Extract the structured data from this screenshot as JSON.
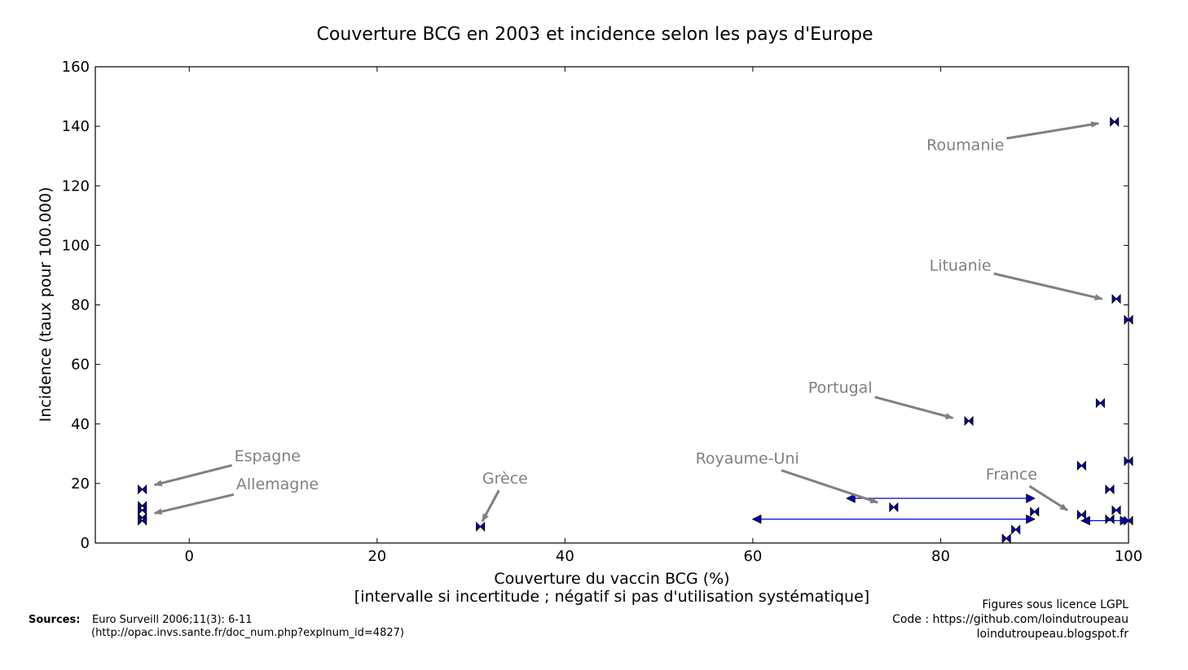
{
  "chart_data": {
    "type": "scatter",
    "title": "Couverture BCG en 2003 et incidence selon les pays d'Europe",
    "xlabel_line1": "Couverture du vaccin BCG (%)",
    "xlabel_line2": "[intervalle si incertitude ; négatif si pas d'utilisation systématique]",
    "ylabel": "Incidence (taux pour 100.000)",
    "xlim": [
      -10,
      100
    ],
    "ylim": [
      0,
      160
    ],
    "x_ticks": [
      0,
      20,
      40,
      60,
      80,
      100
    ],
    "y_ticks": [
      0,
      20,
      40,
      60,
      80,
      100,
      120,
      140,
      160
    ],
    "grid": false,
    "marker_color": "#0000cc",
    "interval_color": "#0000cc",
    "annotation_color": "#808080",
    "points": [
      {
        "x": -5,
        "y": 18
      },
      {
        "x": -5,
        "y": 12.5
      },
      {
        "x": -5,
        "y": 11
      },
      {
        "x": -5,
        "y": 8.5
      },
      {
        "x": -5,
        "y": 7.5
      },
      {
        "x": 31,
        "y": 5.5
      },
      {
        "x": 75,
        "y": 12
      },
      {
        "x": 83,
        "y": 41
      },
      {
        "x": 87,
        "y": 1.5
      },
      {
        "x": 88,
        "y": 4.5
      },
      {
        "x": 90,
        "y": 10.5
      },
      {
        "x": 95,
        "y": 26
      },
      {
        "x": 95,
        "y": 9.5
      },
      {
        "x": 97,
        "y": 47
      },
      {
        "x": 98,
        "y": 18
      },
      {
        "x": 98,
        "y": 8
      },
      {
        "x": 98.5,
        "y": 141.5
      },
      {
        "x": 98.7,
        "y": 82
      },
      {
        "x": 98.7,
        "y": 11
      },
      {
        "x": 100,
        "y": 75
      },
      {
        "x": 100,
        "y": 27.5
      },
      {
        "x": 100,
        "y": 7.5
      }
    ],
    "intervals": [
      {
        "x_min": 70,
        "x_max": 90,
        "y": 15
      },
      {
        "x_min": 60,
        "x_max": 90,
        "y": 8
      },
      {
        "x_min": 95,
        "x_max": 100,
        "y": 7.5
      }
    ],
    "annotations": [
      {
        "text": "Roumanie",
        "text_x": 78.5,
        "text_y": 132,
        "target_x": 96.8,
        "target_y": 141
      },
      {
        "text": "Lituanie",
        "text_x": 78.8,
        "text_y": 91.5,
        "target_x": 97.2,
        "target_y": 82
      },
      {
        "text": "Portugal",
        "text_x": 65.9,
        "text_y": 50.5,
        "target_x": 81.3,
        "target_y": 42
      },
      {
        "text": "Royaume-Uni",
        "text_x": 53.9,
        "text_y": 26.6,
        "target_x": 73.3,
        "target_y": 13.6
      },
      {
        "text": "France",
        "text_x": 84.8,
        "text_y": 21.3,
        "target_x": 93.5,
        "target_y": 11
      },
      {
        "text": "Espagne",
        "text_x": 4.8,
        "text_y": 27.5,
        "target_x": -3.7,
        "target_y": 19.5
      },
      {
        "text": "Allemagne",
        "text_x": 5.0,
        "text_y": 18.1,
        "target_x": -3.7,
        "target_y": 10
      },
      {
        "text": "Grèce",
        "text_x": 31.2,
        "text_y": 19.9,
        "target_x": 31.2,
        "target_y": 7.3
      }
    ]
  },
  "footer": {
    "sources_label": "Sources:",
    "sources_line1": "Euro Surveill 2006;11(3): 6-11",
    "sources_line2": "(http://opac.invs.sante.fr/doc_num.php?explnum_id=4827)",
    "credits_line1": "Figures sous licence LGPL",
    "credits_line2": "Code : https://github.com/loindutroupeau",
    "credits_line3": "loindutroupeau.blogspot.fr"
  }
}
